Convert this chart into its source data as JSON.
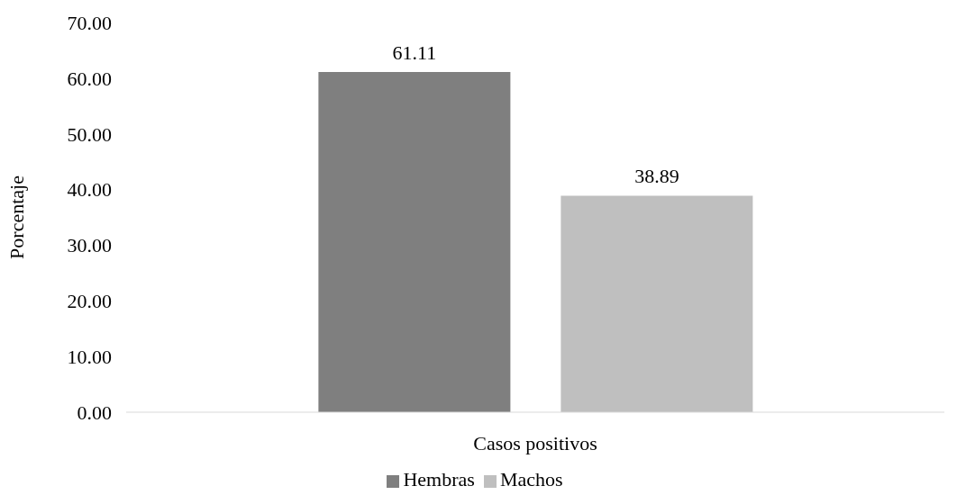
{
  "chart_data": {
    "type": "bar",
    "ylabel": "Porcentaje",
    "categories": [
      "Casos positivos"
    ],
    "series": [
      {
        "name": "Hembras",
        "color": "#7f7f7f",
        "values": [
          61.11
        ]
      },
      {
        "name": "Machos",
        "color": "#bfbfbf",
        "values": [
          38.89
        ]
      }
    ],
    "ylim": [
      0,
      70
    ],
    "yticks": [
      {
        "value": 0,
        "label": "0.00"
      },
      {
        "value": 10,
        "label": "10.00"
      },
      {
        "value": 20,
        "label": "20.00"
      },
      {
        "value": 30,
        "label": "30.00"
      },
      {
        "value": 40,
        "label": "40.00"
      },
      {
        "value": 50,
        "label": "50.00"
      },
      {
        "value": 60,
        "label": "60.00"
      },
      {
        "value": 70,
        "label": "70.00"
      }
    ],
    "data_labels": true,
    "legend": "bottom",
    "grid": false
  }
}
